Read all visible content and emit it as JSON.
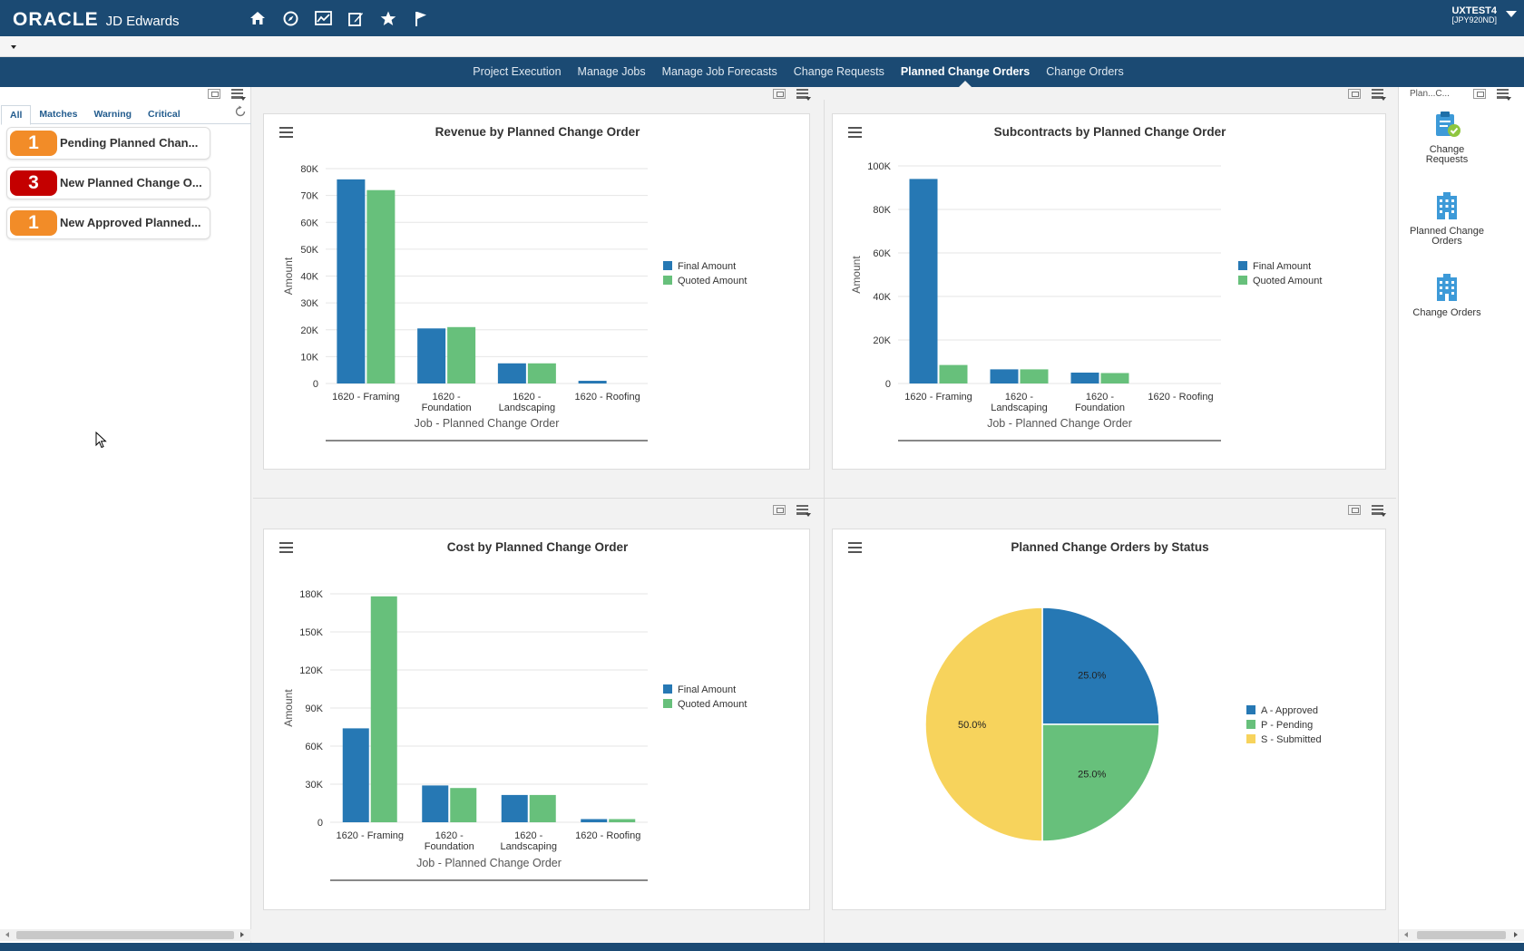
{
  "header": {
    "logo_oracle": "ORACLE",
    "logo_product": "JD Edwards",
    "user_name": "UXTEST4",
    "user_env": "[JPY920ND]",
    "icons": [
      "home-icon",
      "compass-icon",
      "chart-icon",
      "edit-icon",
      "star-icon",
      "flag-icon"
    ]
  },
  "nav": {
    "tabs": [
      {
        "label": "Project Execution"
      },
      {
        "label": "Manage Jobs"
      },
      {
        "label": "Manage Job Forecasts"
      },
      {
        "label": "Change Requests"
      },
      {
        "label": "Planned Change Orders",
        "active": true
      },
      {
        "label": "Change Orders"
      }
    ]
  },
  "watchlist": {
    "tabs": [
      "All",
      "Matches",
      "Warning",
      "Critical"
    ],
    "items": [
      {
        "count": "1",
        "label": "Pending Planned Chan...",
        "color": "#f28c28"
      },
      {
        "count": "3",
        "label": "New Planned Change O...",
        "color": "#c40000"
      },
      {
        "count": "1",
        "label": "New Approved Planned...",
        "color": "#f28c28"
      }
    ]
  },
  "rightpanel": {
    "title": "Plan...C...",
    "items": [
      {
        "line1": "Change",
        "line2": "Requests"
      },
      {
        "line1": "Planned Change",
        "line2": "Orders"
      },
      {
        "line1": "Change Orders",
        "line2": ""
      }
    ]
  },
  "colors": {
    "final": "#2678b4",
    "quoted": "#67c07b",
    "pending_yellow": "#f7d35c"
  },
  "chart_data": [
    {
      "type": "bar",
      "title": "Revenue by Planned Change Order",
      "xlabel": "Job - Planned Change Order",
      "ylabel": "Amount",
      "categories": [
        "1620 - Framing",
        "1620 - Foundation",
        "1620 - Landscaping",
        "1620 - Roofing"
      ],
      "ylim": [
        0,
        80000
      ],
      "yticks": [
        "0",
        "10K",
        "20K",
        "30K",
        "40K",
        "50K",
        "60K",
        "70K",
        "80K"
      ],
      "series": [
        {
          "name": "Final Amount",
          "values": [
            76000,
            20500,
            7500,
            1000
          ]
        },
        {
          "name": "Quoted Amount",
          "values": [
            72000,
            21000,
            7500,
            0
          ]
        }
      ]
    },
    {
      "type": "bar",
      "title": "Subcontracts by Planned Change Order",
      "xlabel": "Job - Planned Change Order",
      "ylabel": "Amount",
      "categories": [
        "1620 - Framing",
        "1620 - Landscaping",
        "1620 - Foundation",
        "1620 - Roofing"
      ],
      "ylim": [
        0,
        100000
      ],
      "yticks": [
        "0",
        "20K",
        "40K",
        "60K",
        "80K",
        "100K"
      ],
      "series": [
        {
          "name": "Final Amount",
          "values": [
            94000,
            6500,
            5000,
            0
          ]
        },
        {
          "name": "Quoted Amount",
          "values": [
            8500,
            6500,
            4800,
            0
          ]
        }
      ]
    },
    {
      "type": "bar",
      "title": "Cost by Planned Change Order",
      "xlabel": "Job - Planned Change Order",
      "ylabel": "Amount",
      "categories": [
        "1620 - Framing",
        "1620 - Foundation",
        "1620 - Landscaping",
        "1620 - Roofing"
      ],
      "ylim": [
        0,
        180000
      ],
      "yticks": [
        "0",
        "30K",
        "60K",
        "90K",
        "120K",
        "150K",
        "180K"
      ],
      "series": [
        {
          "name": "Final Amount",
          "values": [
            74000,
            29000,
            21500,
            2500
          ]
        },
        {
          "name": "Quoted Amount",
          "values": [
            178000,
            27000,
            21500,
            2500
          ]
        }
      ]
    },
    {
      "type": "pie",
      "title": "Planned Change Orders by Status",
      "slices": [
        {
          "label": "A - Approved",
          "value": 25.0,
          "display": "25.0%"
        },
        {
          "label": "P - Pending",
          "value": 25.0,
          "display": "25.0%"
        },
        {
          "label": "S - Submitted",
          "value": 50.0,
          "display": "50.0%"
        }
      ]
    }
  ]
}
